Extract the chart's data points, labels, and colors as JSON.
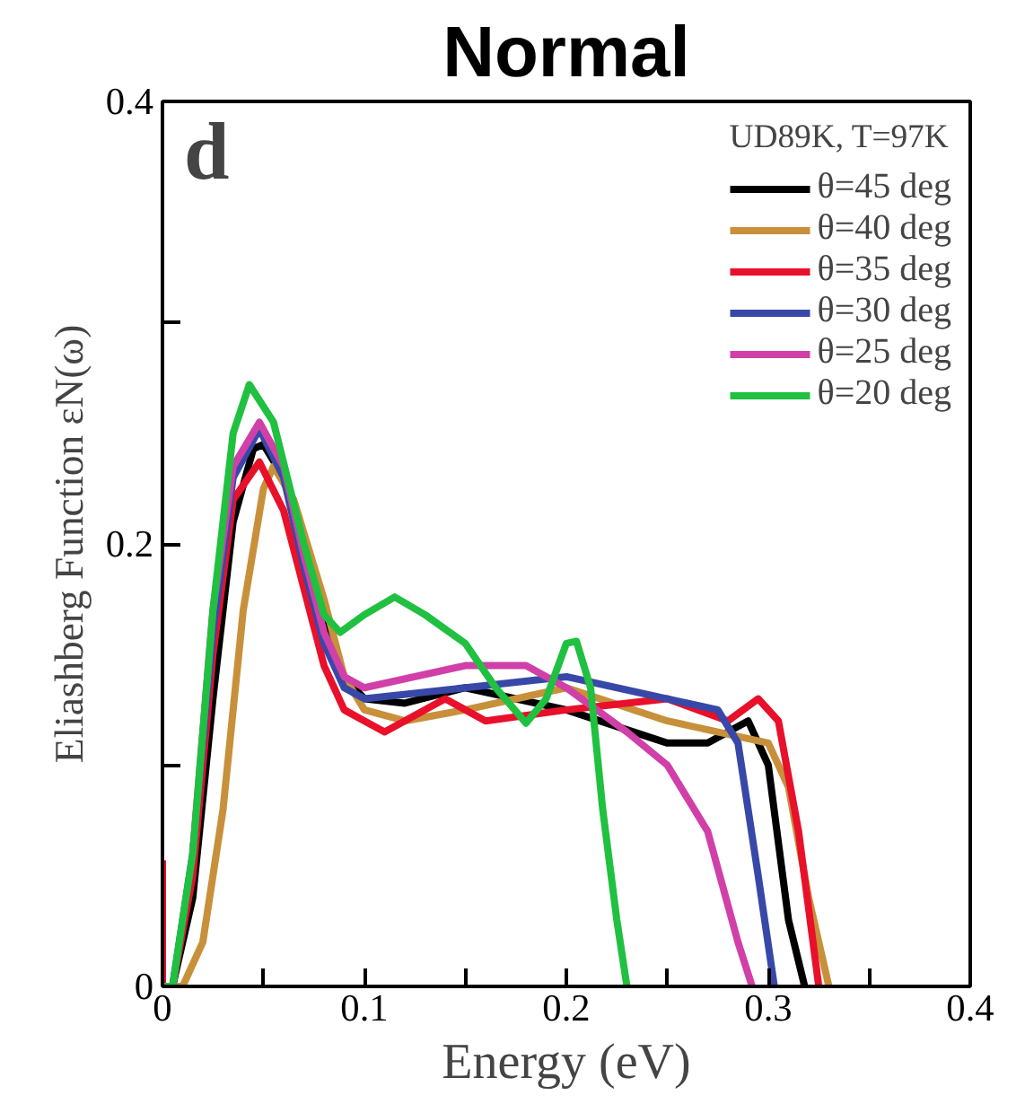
{
  "chart_data": {
    "type": "line",
    "title": "Normal",
    "xlabel": "Energy (eV)",
    "ylabel": "Eliashberg Function εN(ω)",
    "legend_title": "UD89K, T=97K",
    "legend": "top right",
    "grid": false,
    "marker": "none",
    "line_style": "solid",
    "annotations": [
      "d"
    ],
    "xlim": [
      0,
      0.4
    ],
    "ylim": [
      0,
      0.4
    ],
    "xticks": [
      0,
      {
        "value": 0.05,
        "label": null
      },
      0.1,
      {
        "value": 0.15,
        "label": null
      },
      0.2,
      {
        "value": 0.25,
        "label": null
      },
      0.3,
      {
        "value": 0.35,
        "label": null
      },
      0.4
    ],
    "yticks": [
      0,
      {
        "value": 0.1,
        "label": null
      },
      0.2,
      {
        "value": 0.3,
        "label": null
      },
      0.4
    ],
    "series": [
      {
        "name": "θ=45 deg",
        "color": "#000000",
        "x": [
          0,
          0.005,
          0.015,
          0.025,
          0.035,
          0.045,
          0.05,
          0.06,
          0.07,
          0.08,
          0.09,
          0.1,
          0.12,
          0.15,
          0.2,
          0.25,
          0.27,
          0.29,
          0.3,
          0.31,
          0.318
        ],
        "values": [
          0,
          0,
          0.04,
          0.13,
          0.21,
          0.243,
          0.245,
          0.23,
          0.2,
          0.165,
          0.14,
          0.13,
          0.128,
          0.135,
          0.125,
          0.11,
          0.11,
          0.12,
          0.1,
          0.03,
          0
        ]
      },
      {
        "name": "θ=40 deg",
        "color": "#c8903a",
        "x": [
          0,
          0.01,
          0.02,
          0.03,
          0.04,
          0.05,
          0.055,
          0.065,
          0.08,
          0.09,
          0.1,
          0.12,
          0.15,
          0.2,
          0.25,
          0.3,
          0.31,
          0.32,
          0.33
        ],
        "values": [
          0,
          0,
          0.02,
          0.08,
          0.17,
          0.225,
          0.235,
          0.22,
          0.175,
          0.14,
          0.125,
          0.12,
          0.125,
          0.135,
          0.12,
          0.11,
          0.09,
          0.04,
          0
        ]
      },
      {
        "name": "θ=35 deg",
        "color": "#e8102a",
        "x": [
          0,
          0,
          0.005,
          0.015,
          0.025,
          0.035,
          0.048,
          0.06,
          0.07,
          0.08,
          0.09,
          0.1,
          0.11,
          0.14,
          0.16,
          0.2,
          0.25,
          0.28,
          0.295,
          0.305,
          0.315,
          0.325
        ],
        "values": [
          0.057,
          0.0,
          0,
          0.05,
          0.15,
          0.22,
          0.237,
          0.215,
          0.18,
          0.145,
          0.125,
          0.12,
          0.115,
          0.13,
          0.12,
          0.125,
          0.13,
          0.12,
          0.13,
          0.12,
          0.07,
          0
        ]
      },
      {
        "name": "θ=30 deg",
        "color": "#3848a8",
        "x": [
          0,
          0.005,
          0.015,
          0.025,
          0.035,
          0.048,
          0.06,
          0.07,
          0.08,
          0.09,
          0.1,
          0.15,
          0.2,
          0.25,
          0.275,
          0.285,
          0.295,
          0.303
        ],
        "values": [
          0,
          0,
          0.06,
          0.16,
          0.23,
          0.252,
          0.23,
          0.19,
          0.155,
          0.135,
          0.13,
          0.135,
          0.14,
          0.13,
          0.125,
          0.11,
          0.05,
          0
        ]
      },
      {
        "name": "θ=25 deg",
        "color": "#d040a8",
        "x": [
          0.015,
          0.025,
          0.035,
          0.048,
          0.06,
          0.07,
          0.08,
          0.09,
          0.1,
          0.15,
          0.18,
          0.2,
          0.23,
          0.25,
          0.27,
          0.285,
          0.292
        ],
        "values": [
          0.06,
          0.17,
          0.235,
          0.255,
          0.235,
          0.195,
          0.16,
          0.14,
          0.135,
          0.145,
          0.145,
          0.135,
          0.115,
          0.1,
          0.07,
          0.02,
          0
        ]
      },
      {
        "name": "θ=20 deg",
        "color": "#20c040",
        "x": [
          0,
          0.005,
          0.015,
          0.025,
          0.035,
          0.043,
          0.055,
          0.07,
          0.08,
          0.088,
          0.1,
          0.115,
          0.13,
          0.15,
          0.165,
          0.18,
          0.19,
          0.2,
          0.205,
          0.212,
          0.218,
          0.225,
          0.23
        ],
        "values": [
          0,
          0,
          0.06,
          0.17,
          0.25,
          0.272,
          0.255,
          0.2,
          0.168,
          0.16,
          0.168,
          0.176,
          0.168,
          0.155,
          0.135,
          0.119,
          0.13,
          0.155,
          0.156,
          0.135,
          0.08,
          0.03,
          0
        ]
      }
    ]
  }
}
